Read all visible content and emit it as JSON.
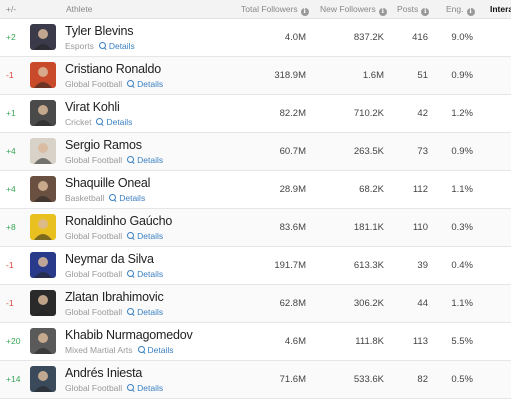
{
  "header": {
    "rank": "+/-",
    "athlete": "Athlete",
    "total_followers": "Total Followers",
    "new_followers": "New Followers",
    "posts": "Posts",
    "engagement": "Eng.",
    "interactions": "Intera"
  },
  "info_icon": "i",
  "details_label": "Details",
  "rows": [
    {
      "rank": "+2",
      "name": "Tyler Blevins",
      "category": "Esports",
      "total": "4.0M",
      "new": "837.2K",
      "posts": "416",
      "eng": "9.0%",
      "avatar_color": "#3a3a4a"
    },
    {
      "rank": "-1",
      "name": "Cristiano Ronaldo",
      "category": "Global Football",
      "total": "318.9M",
      "new": "1.6M",
      "posts": "51",
      "eng": "0.9%",
      "avatar_color": "#c84a2a"
    },
    {
      "rank": "+1",
      "name": "Virat Kohli",
      "category": "Cricket",
      "total": "82.2M",
      "new": "710.2K",
      "posts": "42",
      "eng": "1.2%",
      "avatar_color": "#4a4a4a"
    },
    {
      "rank": "+4",
      "name": "Sergio Ramos",
      "category": "Global Football",
      "total": "60.7M",
      "new": "263.5K",
      "posts": "73",
      "eng": "0.9%",
      "avatar_color": "#d8d2c8"
    },
    {
      "rank": "+4",
      "name": "Shaquille Oneal",
      "category": "Basketball",
      "total": "28.9M",
      "new": "68.2K",
      "posts": "112",
      "eng": "1.1%",
      "avatar_color": "#6a5040"
    },
    {
      "rank": "+8",
      "name": "Ronaldinho Gaúcho",
      "category": "Global Football",
      "total": "83.6M",
      "new": "181.1K",
      "posts": "110",
      "eng": "0.3%",
      "avatar_color": "#e8c020"
    },
    {
      "rank": "-1",
      "name": "Neymar da Silva",
      "category": "Global Football",
      "total": "191.7M",
      "new": "613.3K",
      "posts": "39",
      "eng": "0.4%",
      "avatar_color": "#2a3a8a"
    },
    {
      "rank": "-1",
      "name": "Zlatan Ibrahimovic",
      "category": "Global Football",
      "total": "62.8M",
      "new": "306.2K",
      "posts": "44",
      "eng": "1.1%",
      "avatar_color": "#2a2a2a"
    },
    {
      "rank": "+20",
      "name": "Khabib Nurmagomedov",
      "category": "Mixed Martial Arts",
      "total": "4.6M",
      "new": "111.8K",
      "posts": "113",
      "eng": "5.5%",
      "avatar_color": "#5a5a5a"
    },
    {
      "rank": "+14",
      "name": "Andrés Iniesta",
      "category": "Global Football",
      "total": "71.6M",
      "new": "533.6K",
      "posts": "82",
      "eng": "0.5%",
      "avatar_color": "#3a4a5a"
    }
  ]
}
